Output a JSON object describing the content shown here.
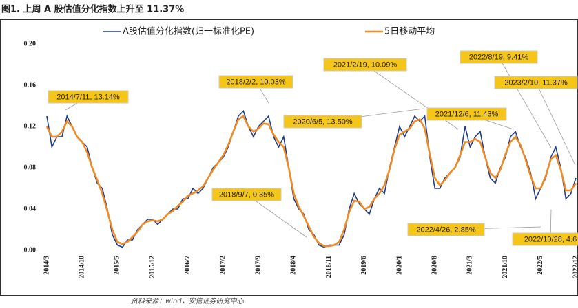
{
  "chart_data": {
    "type": "line",
    "title": "图1. 上周 A 股估值分化指数上升至 11.37%",
    "source": "资料来源：wind，安信证券研究中心",
    "categories": [
      "2014/3",
      null,
      null,
      null,
      null,
      null,
      null,
      "2014/10",
      null,
      null,
      null,
      null,
      null,
      null,
      "2015/5",
      null,
      null,
      null,
      null,
      null,
      null,
      "2015/12",
      null,
      null,
      null,
      null,
      null,
      null,
      "2016/7",
      null,
      null,
      null,
      null,
      null,
      null,
      "2017/2",
      null,
      null,
      null,
      null,
      null,
      null,
      "2017/9",
      null,
      null,
      null,
      null,
      null,
      null,
      "2018/4",
      null,
      null,
      null,
      null,
      null,
      null,
      "2018/11",
      null,
      null,
      null,
      null,
      null,
      null,
      "2019/6",
      null,
      null,
      null,
      null,
      null,
      null,
      "2020/1",
      null,
      null,
      null,
      null,
      null,
      null,
      "2020/8",
      null,
      null,
      null,
      null,
      null,
      null,
      "2021/3",
      null,
      null,
      null,
      null,
      null,
      null,
      "2021/10",
      null,
      null,
      null,
      null,
      null,
      null,
      "2022/5",
      null,
      null,
      null,
      null,
      null,
      null,
      "2022/12"
    ],
    "series": [
      {
        "name": "A股估值分化指数(归一标准化PE)",
        "color": "#1f3d8c",
        "values": [
          0.13,
          0.1,
          0.11,
          0.11,
          0.13,
          0.12,
          0.11,
          0.105,
          0.1,
          0.08,
          0.065,
          0.06,
          0.04,
          0.015,
          0.005,
          0.003,
          0.01,
          0.01,
          0.02,
          0.025,
          0.03,
          0.03,
          0.025,
          0.03,
          0.035,
          0.04,
          0.04,
          0.05,
          0.05,
          0.06,
          0.055,
          0.06,
          0.07,
          0.08,
          0.085,
          0.09,
          0.1,
          0.115,
          0.13,
          0.135,
          0.12,
          0.11,
          0.12,
          0.125,
          0.13,
          0.11,
          0.1,
          0.11,
          0.08,
          0.05,
          0.04,
          0.035,
          0.02,
          0.015,
          0.005,
          0.003,
          0.005,
          0.005,
          0.005,
          0.015,
          0.04,
          0.055,
          0.045,
          0.04,
          0.035,
          0.05,
          0.06,
          0.055,
          0.08,
          0.1,
          0.12,
          0.11,
          0.12,
          0.13,
          0.125,
          0.13,
          0.09,
          0.06,
          0.06,
          0.07,
          0.075,
          0.08,
          0.09,
          0.12,
          0.1,
          0.11,
          0.115,
          0.09,
          0.07,
          0.065,
          0.08,
          0.09,
          0.11,
          0.115,
          0.1,
          0.09,
          0.075,
          0.05,
          0.06,
          0.07,
          0.09,
          0.1,
          0.08,
          0.05,
          0.055,
          0.07
        ]
      },
      {
        "name": "5日移动平均",
        "color": "#f08a24",
        "values": [
          0.12,
          0.11,
          0.11,
          0.115,
          0.125,
          0.12,
          0.11,
          0.105,
          0.095,
          0.08,
          0.068,
          0.055,
          0.038,
          0.02,
          0.008,
          0.006,
          0.008,
          0.013,
          0.018,
          0.025,
          0.028,
          0.029,
          0.028,
          0.03,
          0.035,
          0.038,
          0.043,
          0.047,
          0.053,
          0.055,
          0.058,
          0.062,
          0.07,
          0.078,
          0.085,
          0.092,
          0.102,
          0.115,
          0.127,
          0.13,
          0.12,
          0.115,
          0.118,
          0.123,
          0.122,
          0.112,
          0.105,
          0.1,
          0.08,
          0.055,
          0.042,
          0.033,
          0.023,
          0.013,
          0.007,
          0.004,
          0.004,
          0.005,
          0.008,
          0.02,
          0.037,
          0.048,
          0.047,
          0.04,
          0.042,
          0.05,
          0.055,
          0.063,
          0.078,
          0.098,
          0.112,
          0.115,
          0.118,
          0.125,
          0.127,
          0.118,
          0.093,
          0.07,
          0.063,
          0.068,
          0.075,
          0.08,
          0.092,
          0.105,
          0.105,
          0.108,
          0.105,
          0.09,
          0.075,
          0.07,
          0.078,
          0.093,
          0.105,
          0.11,
          0.102,
          0.088,
          0.072,
          0.06,
          0.06,
          0.072,
          0.088,
          0.092,
          0.078,
          0.058,
          0.058,
          0.065
        ]
      }
    ],
    "ylim": [
      0,
      0.2
    ],
    "yticks": [
      {
        "value": 0,
        "label": "0.00"
      },
      {
        "value": 0.04,
        "label": "0.04"
      },
      {
        "value": 0.08,
        "label": "0.08"
      },
      {
        "value": 0.12,
        "label": "0.12"
      },
      {
        "value": 0.16,
        "label": "0.16"
      },
      {
        "value": 0.2,
        "label": "0.20"
      }
    ],
    "annotations": [
      "2014/7/11, 13.14%",
      "2018/2/2, 10.03%",
      "2018/9/7, 0.35%",
      "2020/6/5, 13.50%",
      "2021/2/19, 10.09%",
      "2021/12/6, 11.43%",
      "2022/8/19, 9.41%",
      "2023/2/10, 11.37%",
      "2022/4/26, 2.85%",
      "2022/10/28, 4.6"
    ]
  }
}
